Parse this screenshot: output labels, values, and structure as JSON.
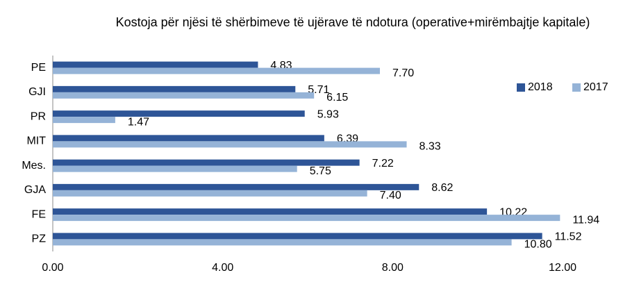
{
  "chart_data": {
    "type": "hbar",
    "title": "Kostoja për njësi të shërbimeve të ujërave të ndotura (operative+mirëmbajtje kapitale)",
    "categories": [
      "PE",
      "GJI",
      "PR",
      "MIT",
      "Mes.",
      "GJA",
      "FE",
      "PZ"
    ],
    "series": [
      {
        "name": "2018",
        "color": "#2e5597",
        "values": [
          4.83,
          5.71,
          5.93,
          6.39,
          7.22,
          8.62,
          10.22,
          11.52
        ],
        "value_labels": [
          "4.83",
          "5.71",
          "5.93",
          "6.39",
          "7.22",
          "8.62",
          "10.22",
          "11.52"
        ]
      },
      {
        "name": "2017",
        "color": "#95b3d7",
        "values": [
          7.7,
          6.15,
          1.47,
          8.33,
          5.75,
          7.4,
          11.94,
          10.8
        ],
        "value_labels": [
          "7.70",
          "6.15",
          "1.47",
          "8.33",
          "5.75",
          "7.40",
          "11.94",
          "10.80"
        ]
      }
    ],
    "xlim": [
      0,
      12
    ],
    "xticks": [
      {
        "value": 0,
        "label": "0.00"
      },
      {
        "value": 4,
        "label": "4.00"
      },
      {
        "value": 8,
        "label": "8.00"
      },
      {
        "value": 12,
        "label": "12.00"
      }
    ],
    "legend": "right"
  }
}
